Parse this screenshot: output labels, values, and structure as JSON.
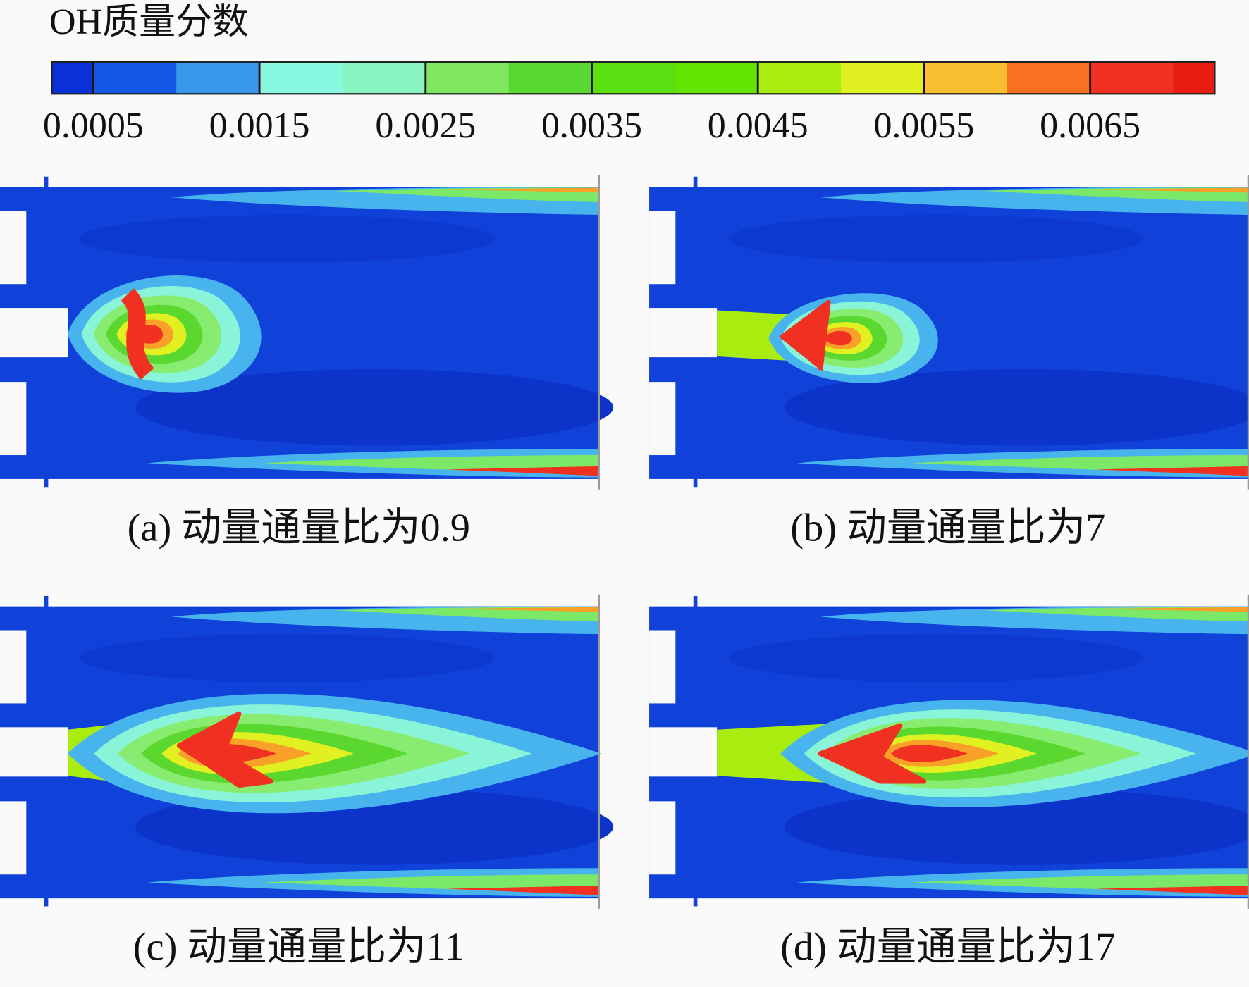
{
  "chart_data": {
    "type": "contour",
    "colorbar": {
      "title": "OH质量分数",
      "ticks": [
        0.0005,
        0.0015,
        0.0025,
        0.0035,
        0.0045,
        0.0055,
        0.0065
      ],
      "levels": [
        0.00025,
        0.0005,
        0.001,
        0.0015,
        0.002,
        0.0025,
        0.003,
        0.0035,
        0.004,
        0.0045,
        0.005,
        0.0055,
        0.006,
        0.0065,
        0.007,
        0.00725
      ],
      "colors": [
        "#0a30d8",
        "#1558e8",
        "#3a98ec",
        "#88f8e0",
        "#88f4c0",
        "#80e860",
        "#58d830",
        "#58e010",
        "#60e400",
        "#a8ec10",
        "#e0f020",
        "#f8c030",
        "#f87020",
        "#f03020",
        "#e81c10"
      ]
    },
    "panels": [
      {
        "caption": "(a) 动量通量比为0.9"
      },
      {
        "caption": "(b) 动量通量比为7"
      },
      {
        "caption": "(c) 动量通量比为11"
      },
      {
        "caption": "(d) 动量通量比为17"
      }
    ]
  }
}
